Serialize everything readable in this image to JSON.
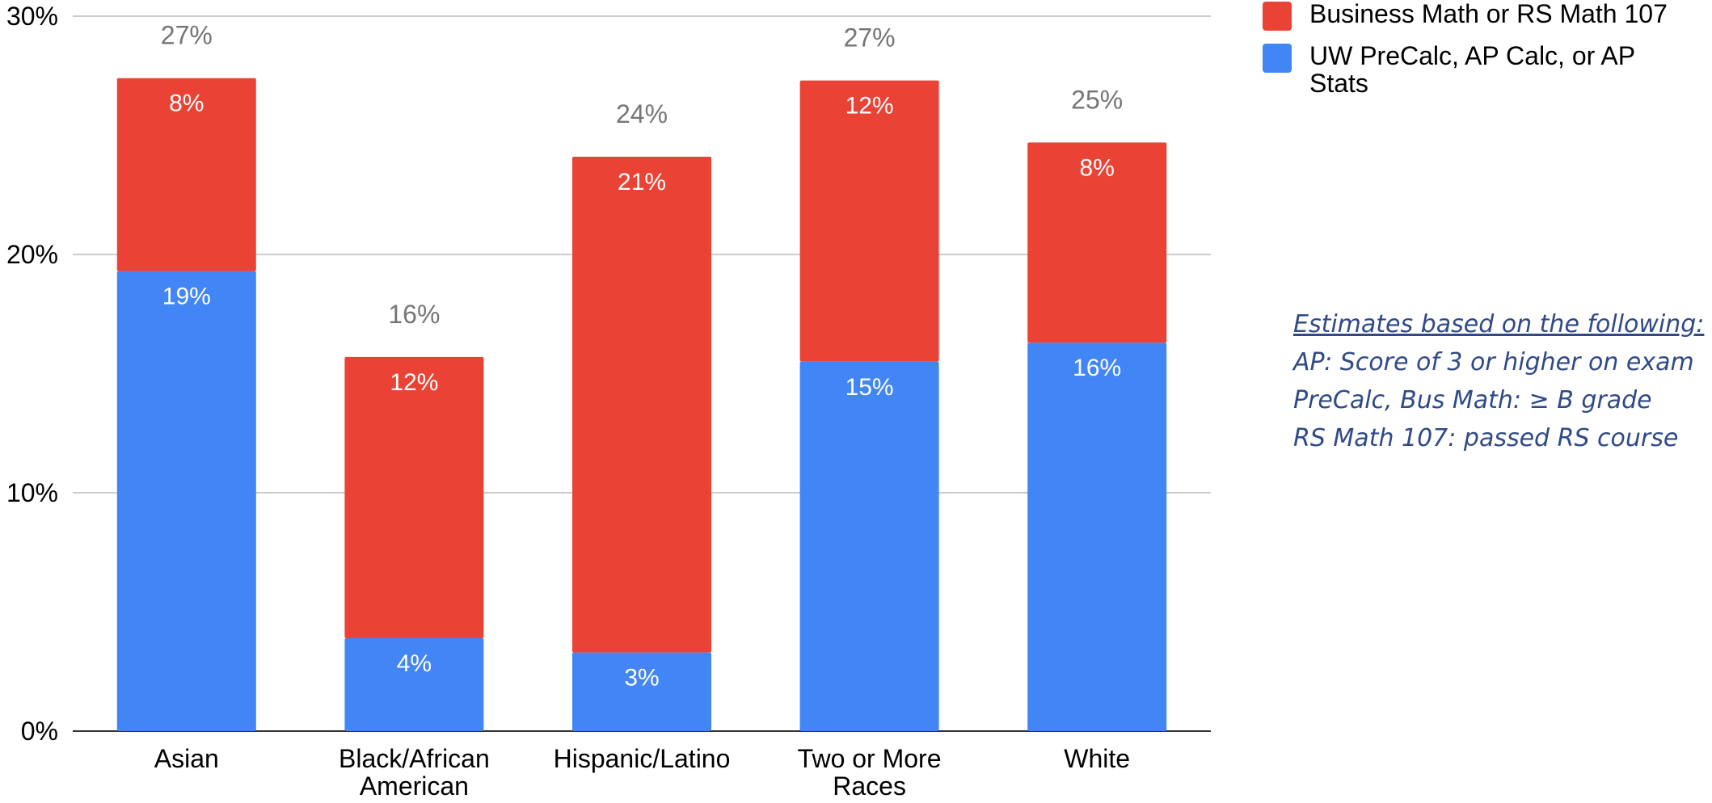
{
  "chart_data": {
    "type": "bar",
    "stacked": true,
    "categories": [
      [
        "Asian"
      ],
      [
        "Black/African",
        "American"
      ],
      [
        "Hispanic/Latino"
      ],
      [
        "Two or More",
        "Races"
      ],
      [
        "White"
      ]
    ],
    "series": [
      {
        "name": "UW PreCalc, AP Calc, or AP Stats",
        "color": "#4285f4",
        "values": [
          19.3,
          3.9,
          3.3,
          15.5,
          16.3
        ],
        "labels": [
          "19%",
          "4%",
          "3%",
          "15%",
          "16%"
        ]
      },
      {
        "name": "Business Math or RS Math 107",
        "color": "#ea4335",
        "values": [
          8.1,
          11.8,
          20.8,
          11.8,
          8.4
        ],
        "labels": [
          "8%",
          "12%",
          "21%",
          "12%",
          "8%"
        ]
      }
    ],
    "totals": [
      "27%",
      "16%",
      "24%",
      "27%",
      "25%"
    ],
    "ylim": [
      0,
      30
    ],
    "yticks": [
      0,
      10,
      20,
      30
    ],
    "ytick_labels": [
      "0%",
      "10%",
      "20%",
      "30%"
    ],
    "grid": true,
    "legend_position": "top-right"
  },
  "legend": [
    {
      "label": "Business Math or RS Math 107",
      "color": "#ea4335"
    },
    {
      "label": "UW PreCalc, AP Calc, or AP Stats",
      "color": "#4285f4"
    }
  ],
  "notes": {
    "heading": "Estimates based on the following:",
    "lines": [
      "AP: Score of 3 or higher on exam",
      "PreCalc, Bus Math: ≥ B grade",
      "RS Math 107: passed RS course"
    ]
  }
}
